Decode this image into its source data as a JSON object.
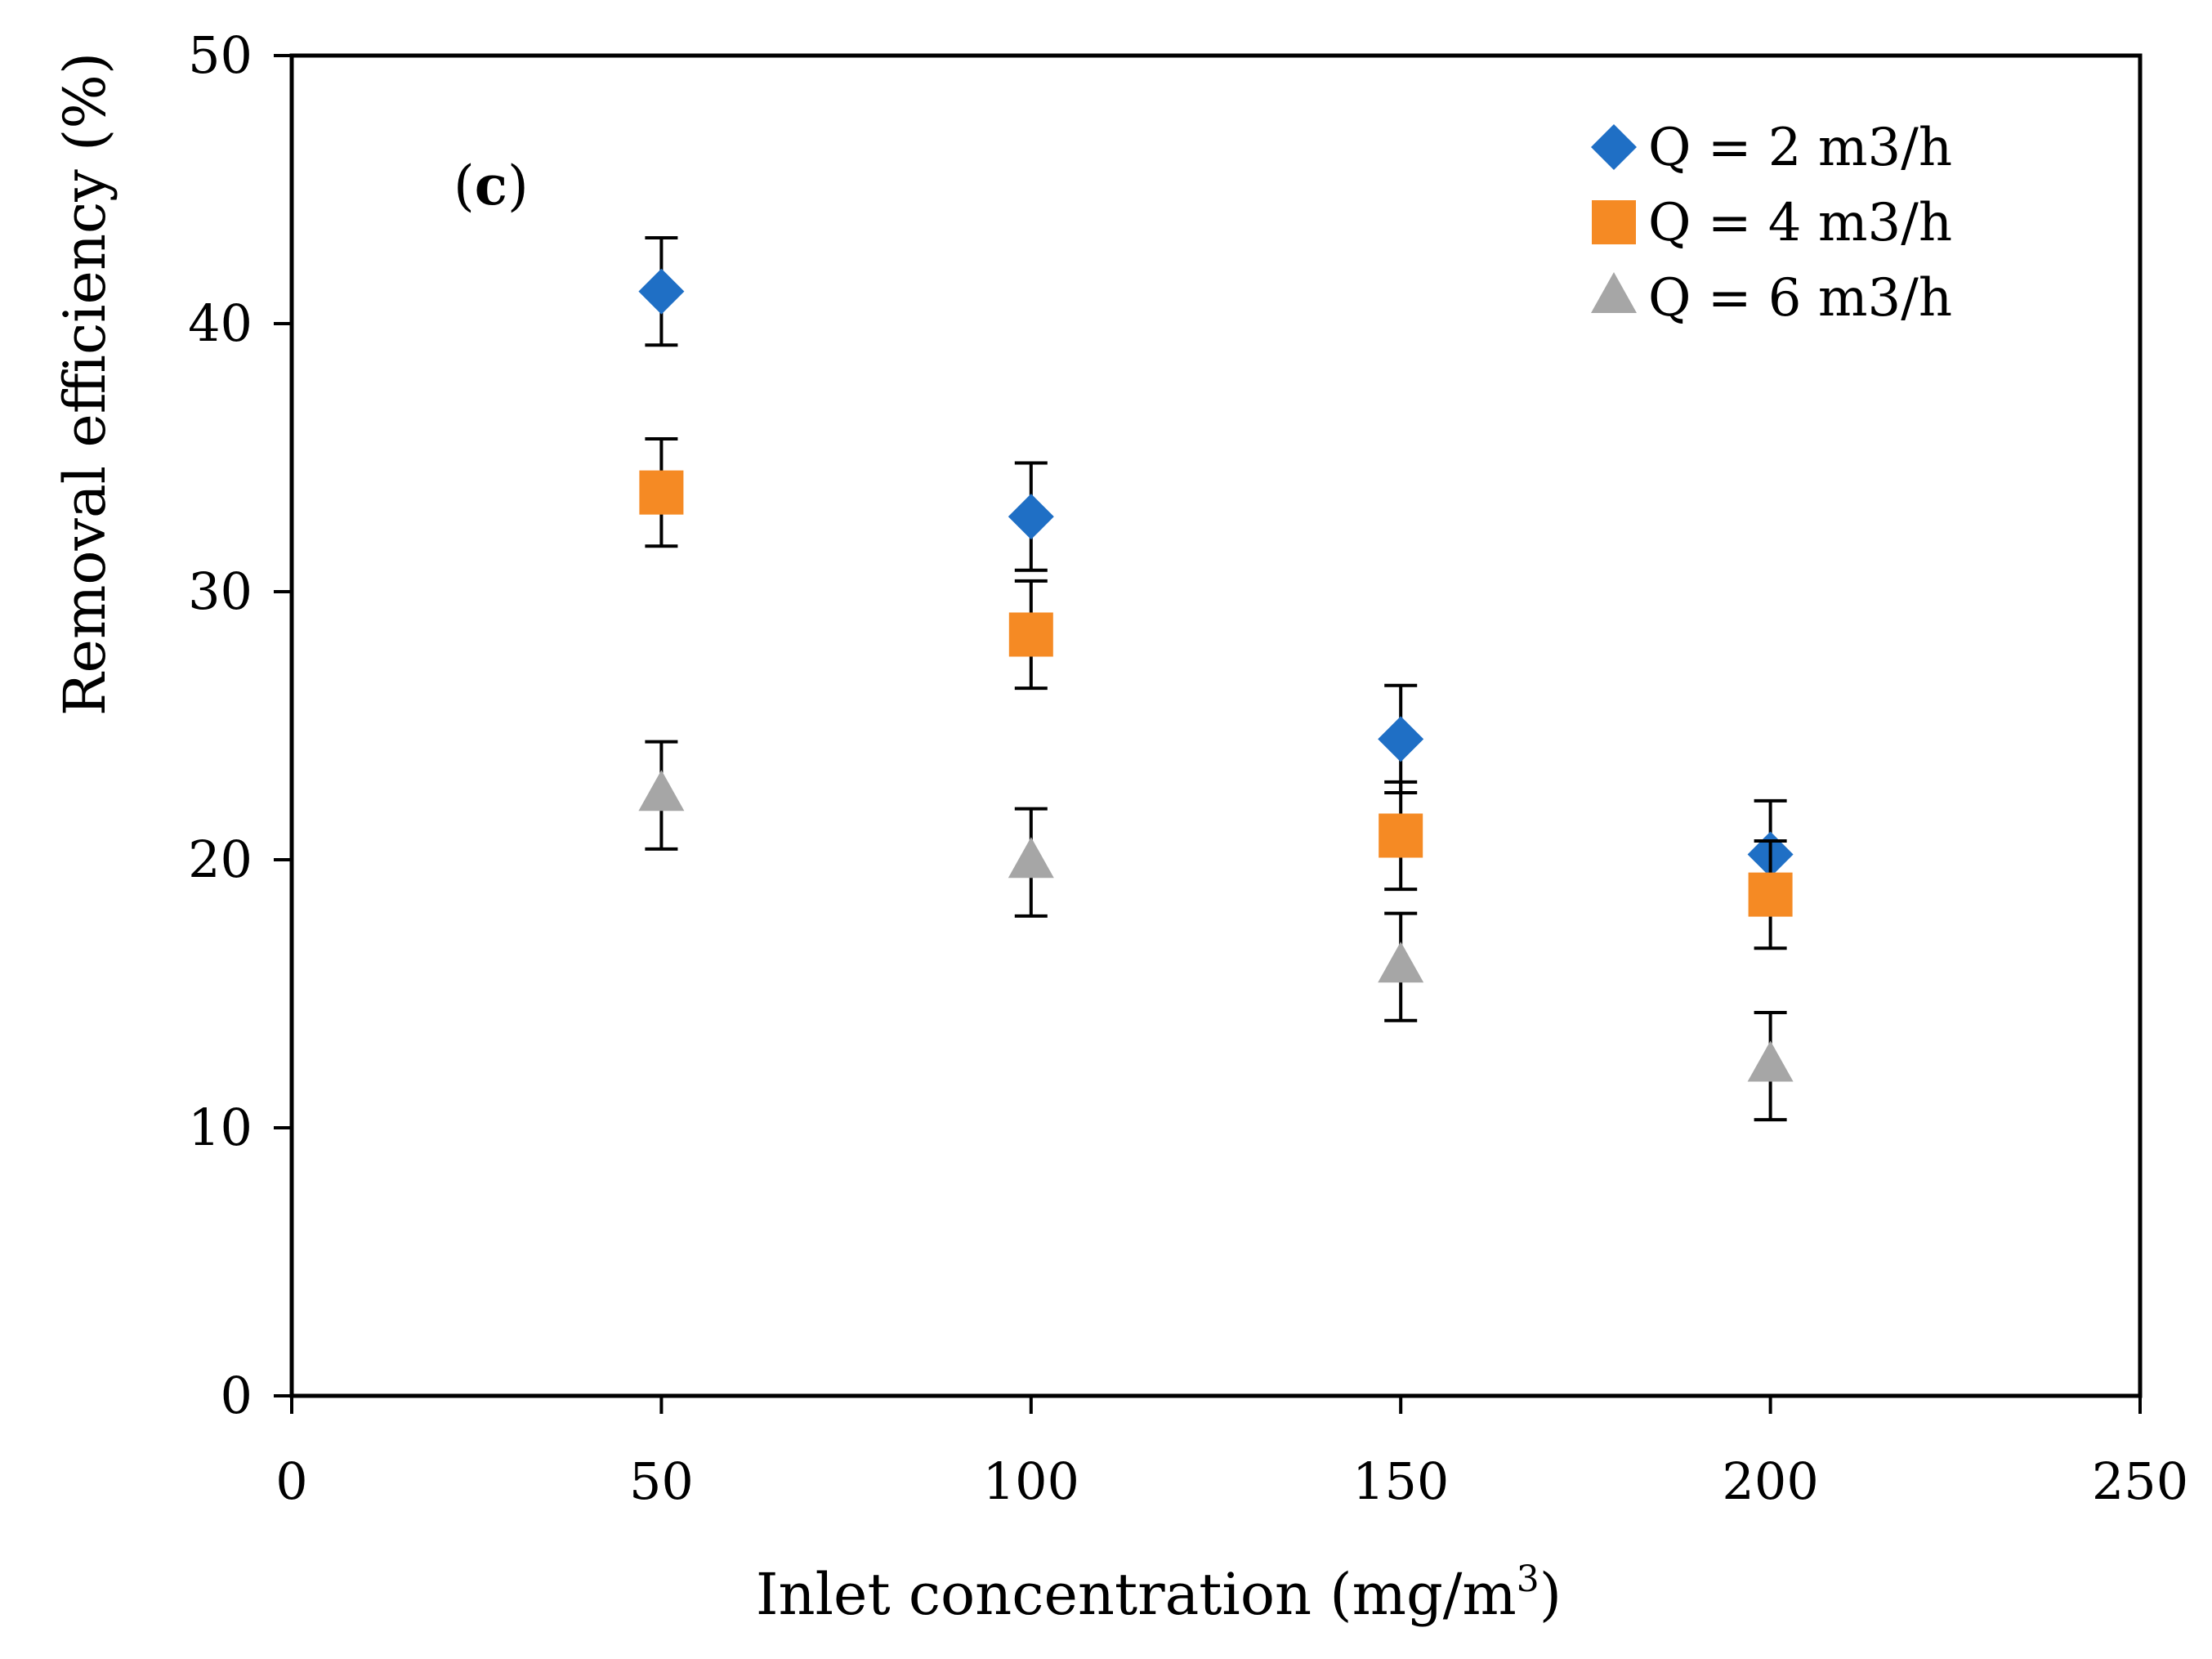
{
  "chart_data": {
    "type": "scatter",
    "panel_label": "c",
    "title": "",
    "xlabel": "Inlet concentration (mg/m",
    "xlabel_sup": "3",
    "xlabel_suffix": ")",
    "ylabel": "Removal efficiency (%)",
    "xlim": [
      0,
      250
    ],
    "ylim": [
      0,
      50
    ],
    "xticks": [
      0,
      50,
      100,
      150,
      200,
      250
    ],
    "yticks": [
      0,
      10,
      20,
      30,
      40,
      50
    ],
    "grid": false,
    "legend_position": "top-right",
    "x": [
      50,
      100,
      150,
      200
    ],
    "series": [
      {
        "name": "Q = 2 m3/h",
        "marker": "diamond",
        "color": "#1f6fc5",
        "values": [
          41.2,
          32.8,
          24.5,
          20.2
        ],
        "error": [
          2.0,
          2.0,
          2.0,
          2.0
        ]
      },
      {
        "name": "Q = 4 m3/h",
        "marker": "square",
        "color": "#f58a24",
        "values": [
          33.7,
          28.4,
          20.9,
          18.7
        ],
        "error": [
          2.0,
          2.0,
          2.0,
          2.0
        ]
      },
      {
        "name": "Q = 6 m3/h",
        "marker": "triangle",
        "color": "#a6a6a6",
        "values": [
          22.4,
          19.9,
          16.0,
          12.3
        ],
        "error": [
          2.0,
          2.0,
          2.0,
          2.0
        ]
      }
    ]
  }
}
